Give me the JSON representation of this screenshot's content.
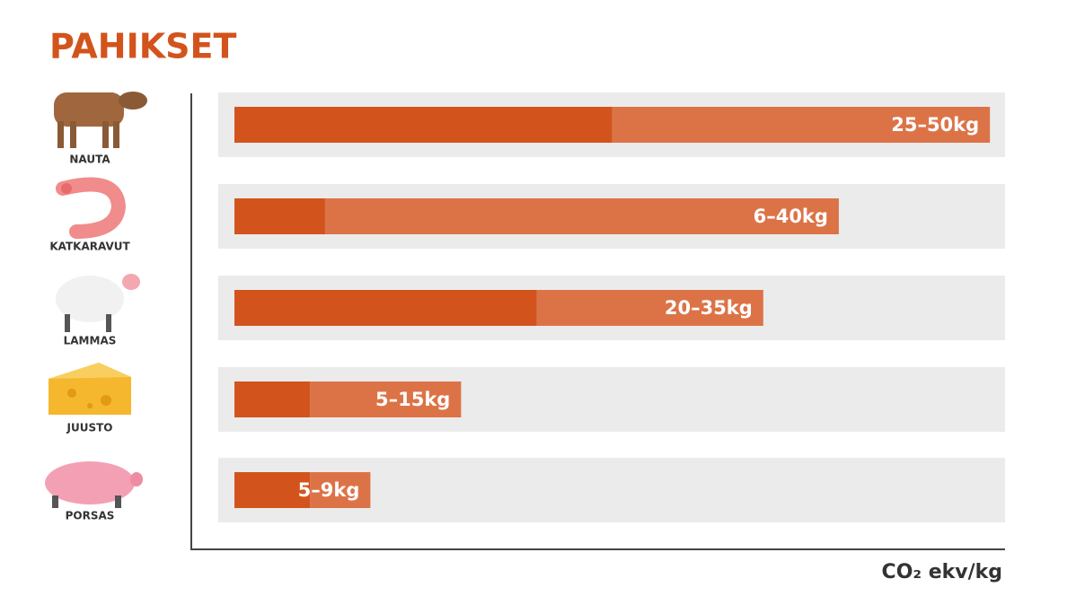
{
  "chart_data": {
    "type": "range-bar",
    "title": "PAHIKSET",
    "categories": [
      "NAUTA",
      "KATKARAVUT",
      "LAMMAS",
      "JUUSTO",
      "PORSAS"
    ],
    "low": [
      25,
      6,
      20,
      5,
      5
    ],
    "high": [
      50,
      40,
      35,
      15,
      9
    ],
    "value_labels": [
      "25–50kg",
      "6–40kg",
      "20–35kg",
      "5–15kg",
      "5–9kg"
    ],
    "low_color": "#d2541c",
    "high_color": "#dc7347",
    "track_color": "#ebebeb",
    "xlim": [
      0,
      51
    ],
    "x_label": "CO₂ ekv/kg"
  }
}
